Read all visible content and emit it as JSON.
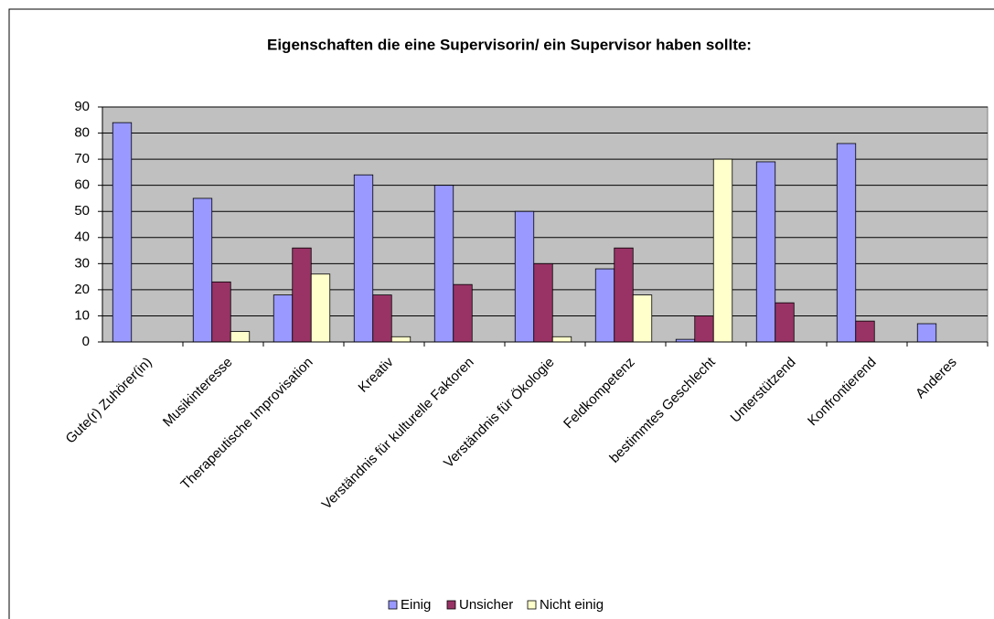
{
  "chart_data": {
    "type": "bar",
    "title": "Eigenschaften die eine Supervisorin/ ein Supervisor haben sollte:",
    "categories": [
      "Gute(r) Zuhörer(in)",
      "Musikinteresse",
      "Therapeutische Improvisation",
      "Kreativ",
      "Verständnis für kulturelle Faktoren",
      "Verständnis für Ökologie",
      "Feldkompetenz",
      "bestimmtes Geschlecht",
      "Unterstützend",
      "Konfrontierend",
      "Anderes"
    ],
    "series": [
      {
        "name": "Einig",
        "color": "#9999ff",
        "values": [
          84,
          55,
          18,
          64,
          60,
          50,
          28,
          1,
          69,
          76,
          7
        ]
      },
      {
        "name": "Unsicher",
        "color": "#993366",
        "values": [
          0,
          23,
          36,
          18,
          22,
          30,
          36,
          10,
          15,
          8,
          0
        ]
      },
      {
        "name": "Nicht einig",
        "color": "#ffffcc",
        "values": [
          0,
          4,
          26,
          2,
          0,
          2,
          18,
          70,
          0,
          0,
          0
        ]
      }
    ],
    "ylim": [
      0,
      90
    ],
    "yticks": [
      0,
      10,
      20,
      30,
      40,
      50,
      60,
      70,
      80,
      90
    ],
    "grid": true,
    "legend": "bottom"
  }
}
